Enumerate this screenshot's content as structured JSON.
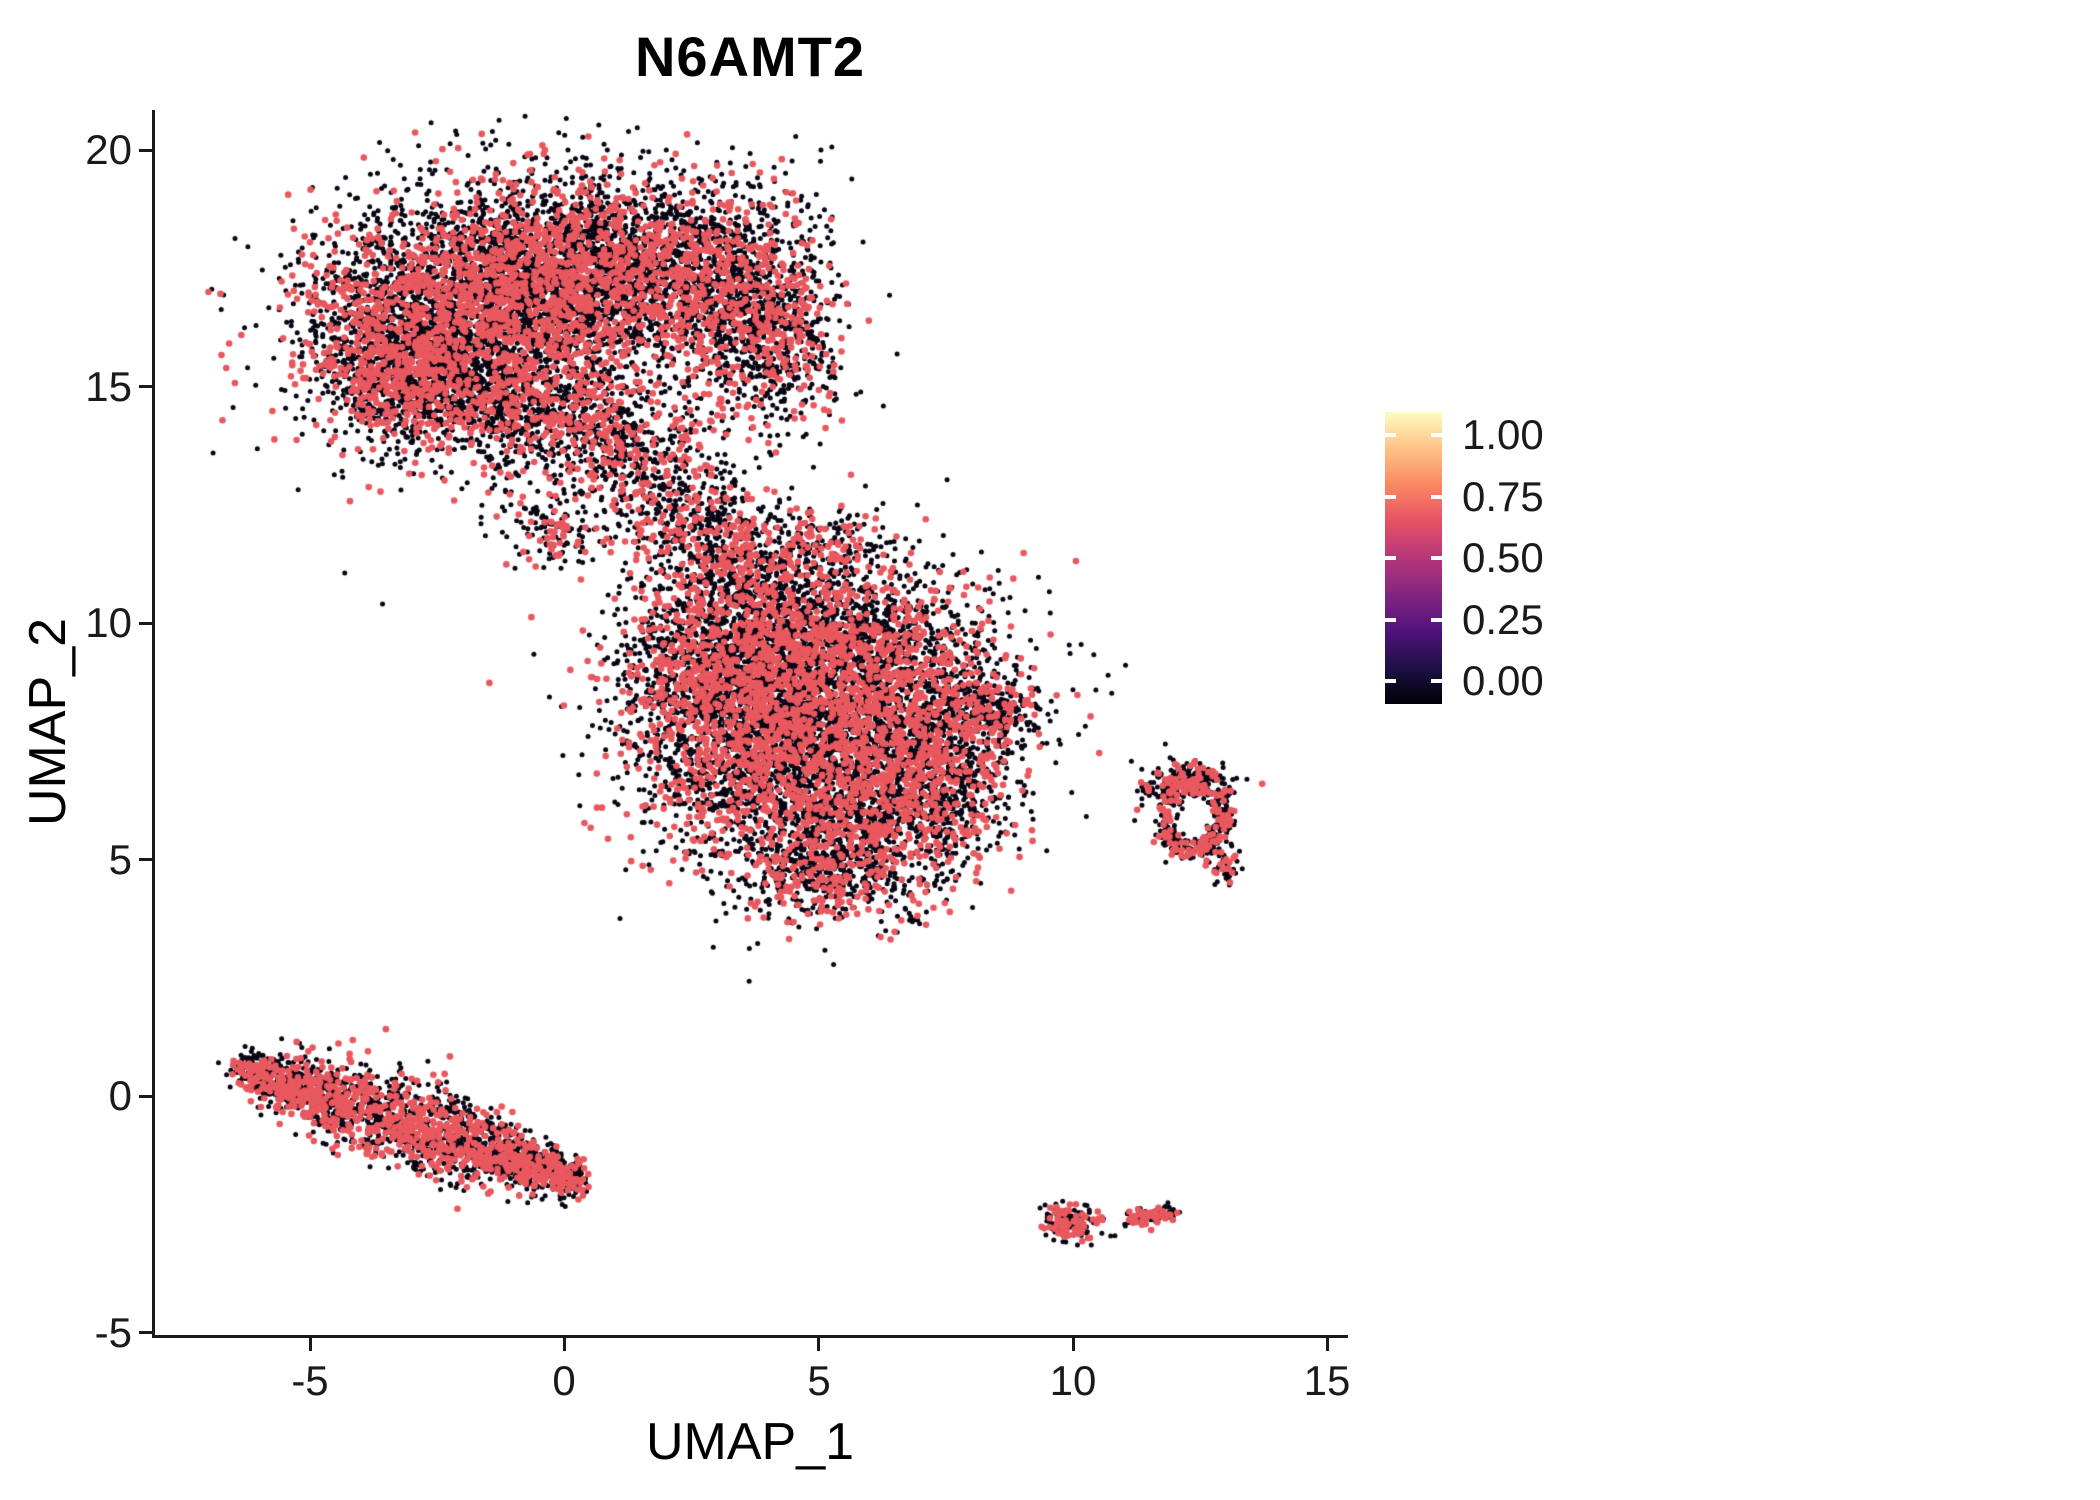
{
  "title": "N6AMT2",
  "axes": {
    "x": {
      "label": "UMAP_1",
      "ticks": [
        "-5",
        "0",
        "5",
        "10",
        "15"
      ]
    },
    "y": {
      "label": "UMAP_2",
      "ticks": [
        "20",
        "15",
        "10",
        "5",
        "0",
        "-5"
      ]
    }
  },
  "colorbar": {
    "labels": [
      "1.00",
      "0.75",
      "0.50",
      "0.25",
      "0.00"
    ],
    "gradient_stops": [
      [
        0,
        "#000004"
      ],
      [
        0.125,
        "#1D1147"
      ],
      [
        0.25,
        "#51127C"
      ],
      [
        0.375,
        "#822681"
      ],
      [
        0.5,
        "#B63679"
      ],
      [
        0.625,
        "#E65164"
      ],
      [
        0.75,
        "#FB8861"
      ],
      [
        0.875,
        "#FEC287"
      ],
      [
        1,
        "#FCFDBF"
      ]
    ]
  },
  "colors": {
    "background": "#FFFFFF",
    "axis": "#1A1A1A",
    "tick_label": "#1A1A1A",
    "title": "#000000",
    "point_zero": "#0A0614",
    "point_expressed": "#E8585E"
  },
  "chart_data": {
    "type": "scatter",
    "title": "N6AMT2",
    "xlabel": "UMAP_1",
    "ylabel": "UMAP_2",
    "xlim": [
      -8.05,
      15.35
    ],
    "ylim": [
      -5.05,
      20.85
    ],
    "x_ticks": [
      -5,
      0,
      5,
      10,
      15
    ],
    "y_ticks": [
      -5,
      0,
      5,
      10,
      15,
      20
    ],
    "legend": {
      "position": "right",
      "range": [
        0,
        1
      ],
      "breaks": [
        0,
        0.25,
        0.5,
        0.75,
        1
      ]
    },
    "point_radius_px": {
      "zero": 2.5,
      "expressed": 3.3
    },
    "seed": 7,
    "description": "UMAP feature plot of N6AMT2 expression; most cells near 0 (black), expressing cells ~0.7 (pink), drawn on top.",
    "clusters": [
      {
        "name": "upper_left_major",
        "frac_expressed": 0.3,
        "parts": [
          {
            "kind": "blob",
            "cx": -2.3,
            "cy": 16.4,
            "sx": 1.45,
            "sy": 1.3,
            "n": 2800
          },
          {
            "kind": "blob",
            "cx": -0.4,
            "cy": 17.3,
            "sx": 1.25,
            "sy": 1.1,
            "n": 2000
          },
          {
            "kind": "blob",
            "cx": 1.6,
            "cy": 17.5,
            "sx": 1.15,
            "sy": 1.0,
            "n": 1400
          },
          {
            "kind": "blob",
            "cx": 3.3,
            "cy": 16.9,
            "sx": 0.95,
            "sy": 1.15,
            "n": 1100
          },
          {
            "kind": "blob",
            "cx": 4.2,
            "cy": 15.9,
            "sx": 0.6,
            "sy": 0.9,
            "n": 450
          },
          {
            "kind": "blob",
            "cx": -3.3,
            "cy": 15.4,
            "sx": 0.75,
            "sy": 0.75,
            "n": 700
          },
          {
            "kind": "blob",
            "cx": -1.2,
            "cy": 14.7,
            "sx": 1.1,
            "sy": 0.6,
            "n": 600
          },
          {
            "kind": "blob",
            "cx": 0.6,
            "cy": 13.9,
            "sx": 0.9,
            "sy": 0.6,
            "n": 450
          },
          {
            "kind": "blob",
            "cx": 1.9,
            "cy": 12.7,
            "sx": 0.85,
            "sy": 0.75,
            "n": 380
          },
          {
            "kind": "blob",
            "cx": 3.0,
            "cy": 11.8,
            "sx": 0.8,
            "sy": 0.55,
            "n": 220
          },
          {
            "kind": "blob",
            "cx": -0.3,
            "cy": 11.9,
            "sx": 0.45,
            "sy": 0.4,
            "n": 130
          }
        ]
      },
      {
        "name": "central_major",
        "frac_expressed": 0.32,
        "parts": [
          {
            "kind": "blob",
            "cx": 4.3,
            "cy": 9.4,
            "sx": 1.5,
            "sy": 1.15,
            "n": 2300
          },
          {
            "kind": "blob",
            "cx": 6.2,
            "cy": 8.4,
            "sx": 1.45,
            "sy": 1.25,
            "n": 2100
          },
          {
            "kind": "blob",
            "cx": 3.9,
            "cy": 7.0,
            "sx": 1.3,
            "sy": 1.15,
            "n": 1700
          },
          {
            "kind": "blob",
            "cx": 5.8,
            "cy": 5.8,
            "sx": 1.15,
            "sy": 0.95,
            "n": 1100
          },
          {
            "kind": "blob",
            "cx": 2.9,
            "cy": 9.0,
            "sx": 0.85,
            "sy": 0.95,
            "n": 650
          },
          {
            "kind": "blob",
            "cx": 7.4,
            "cy": 6.6,
            "sx": 0.75,
            "sy": 0.85,
            "n": 520
          },
          {
            "kind": "blob",
            "cx": 8.3,
            "cy": 8.15,
            "sx": 0.55,
            "sy": 0.35,
            "n": 260
          },
          {
            "kind": "blob",
            "cx": 4.9,
            "cy": 4.6,
            "sx": 0.8,
            "sy": 0.45,
            "n": 300
          },
          {
            "kind": "blob",
            "cx": 3.7,
            "cy": 11.2,
            "sx": 0.75,
            "sy": 0.6,
            "n": 260
          },
          {
            "kind": "blob",
            "cx": 5.3,
            "cy": 11.7,
            "sx": 0.5,
            "sy": 0.4,
            "n": 120
          },
          {
            "kind": "blob",
            "cx": 6.85,
            "cy": 3.75,
            "sx": 0.08,
            "sy": 0.07,
            "n": 6
          }
        ]
      },
      {
        "name": "right_small_ring",
        "frac_expressed": 0.3,
        "parts": [
          {
            "kind": "ring",
            "cx": 12.35,
            "cy": 5.9,
            "rx": 0.55,
            "ry": 0.72,
            "rw": 0.18,
            "n": 360
          },
          {
            "kind": "blob",
            "cx": 12.45,
            "cy": 6.7,
            "sx": 0.4,
            "sy": 0.2,
            "n": 110
          },
          {
            "kind": "blob",
            "cx": 11.85,
            "cy": 6.45,
            "sx": 0.2,
            "sy": 0.25,
            "n": 60
          },
          {
            "kind": "blob",
            "cx": 12.95,
            "cy": 4.85,
            "sx": 0.16,
            "sy": 0.24,
            "n": 55
          },
          {
            "kind": "blob",
            "cx": 13.05,
            "cy": 5.9,
            "sx": 0.12,
            "sy": 0.3,
            "n": 40
          },
          {
            "kind": "blob",
            "cx": 11.45,
            "cy": 6.5,
            "sx": 0.1,
            "sy": 0.1,
            "n": 18
          }
        ]
      },
      {
        "name": "lower_left_band",
        "frac_expressed": 0.38,
        "parts": [
          {
            "kind": "band",
            "x1": -6.35,
            "y1": 0.55,
            "x2": 0.3,
            "y2": -1.8,
            "w": 0.36,
            "jx": 0.15,
            "n": 2400,
            "taper": true
          }
        ]
      },
      {
        "name": "lower_right_small",
        "frac_expressed": 0.32,
        "parts": [
          {
            "kind": "blob",
            "cx": 9.9,
            "cy": -2.7,
            "sx": 0.27,
            "sy": 0.18,
            "n": 150
          },
          {
            "kind": "blob",
            "cx": 10.55,
            "cy": -2.6,
            "sx": 0.06,
            "sy": 0.05,
            "n": 8
          },
          {
            "kind": "band",
            "x1": 11.05,
            "y1": -2.62,
            "x2": 12.0,
            "y2": -2.45,
            "w": 0.09,
            "jx": 0.05,
            "n": 130,
            "taper": false
          }
        ]
      }
    ]
  }
}
